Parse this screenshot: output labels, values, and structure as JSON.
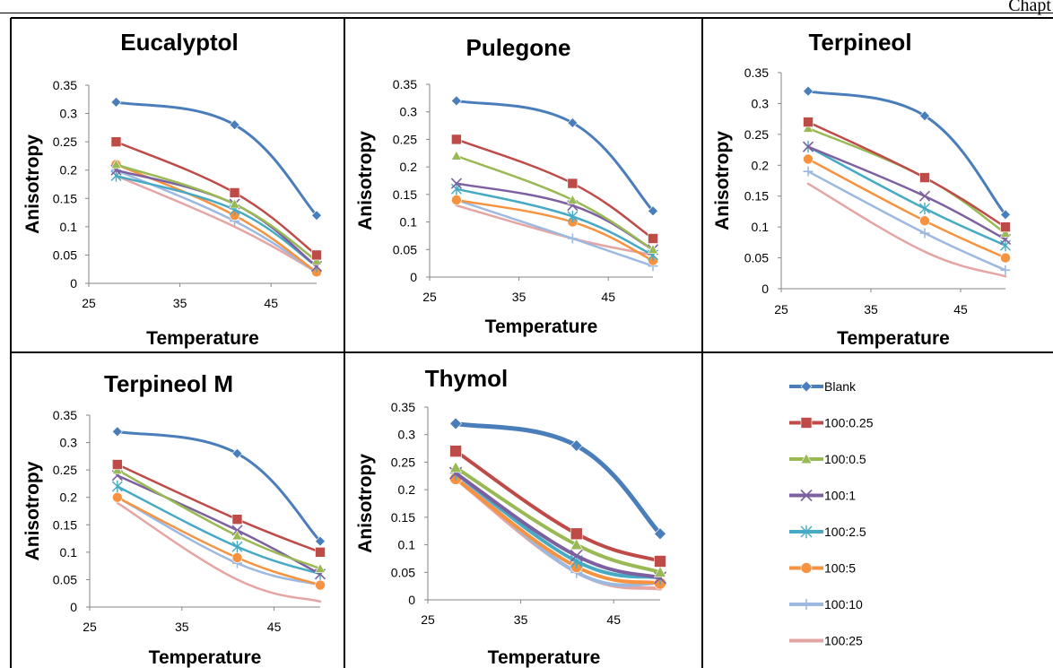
{
  "header": {
    "text": "Chapt"
  },
  "legend": {
    "entries": [
      "Blank",
      "100:0.25",
      "100:0.5",
      "100:1",
      "100:2.5",
      "100:5",
      "100:10",
      "100:25"
    ]
  },
  "series_styles": [
    {
      "name": "Blank",
      "color": "#4A7EBB",
      "marker": "diamond"
    },
    {
      "name": "100:0.25",
      "color": "#BE4B48",
      "marker": "square"
    },
    {
      "name": "100:0.5",
      "color": "#98B954",
      "marker": "triangle"
    },
    {
      "name": "100:1",
      "color": "#7D60A0",
      "marker": "x"
    },
    {
      "name": "100:2.5",
      "color": "#46AAC5",
      "marker": "star"
    },
    {
      "name": "100:5",
      "color": "#F69240",
      "marker": "circle"
    },
    {
      "name": "100:10",
      "color": "#9DB9E0",
      "marker": "plus"
    },
    {
      "name": "100:25",
      "color": "#E5A5A3",
      "marker": "none"
    }
  ],
  "chart_data": [
    {
      "type": "line",
      "title": "Eucalyptol",
      "xlabel": "Temperature",
      "ylabel": "Anisotropy",
      "xlim": [
        25,
        50
      ],
      "ylim": [
        0,
        0.35
      ],
      "xticks": [
        "25",
        "35",
        "45"
      ],
      "yticks": [
        "0",
        "0.05",
        "0.1",
        "0.15",
        "0.2",
        "0.25",
        "0.3",
        "0.35"
      ],
      "x": [
        28,
        41,
        50
      ],
      "series": [
        {
          "name": "Blank",
          "values": [
            0.32,
            0.28,
            0.12
          ]
        },
        {
          "name": "100:0.25",
          "values": [
            0.25,
            0.16,
            0.05
          ]
        },
        {
          "name": "100:0.5",
          "values": [
            0.21,
            0.14,
            0.04
          ]
        },
        {
          "name": "100:1",
          "values": [
            0.2,
            0.14,
            0.03
          ]
        },
        {
          "name": "100:2.5",
          "values": [
            0.19,
            0.13,
            0.03
          ]
        },
        {
          "name": "100:5",
          "values": [
            0.21,
            0.12,
            0.02
          ]
        },
        {
          "name": "100:10",
          "values": [
            0.2,
            0.11,
            0.02
          ]
        },
        {
          "name": "100:25",
          "values": [
            0.19,
            0.1,
            0.02
          ]
        }
      ]
    },
    {
      "type": "line",
      "title": "Pulegone",
      "xlabel": "Temperature",
      "ylabel": "Anisotropy",
      "xlim": [
        25,
        50
      ],
      "ylim": [
        0,
        0.35
      ],
      "xticks": [
        "25",
        "35",
        "45"
      ],
      "yticks": [
        "0",
        "0.05",
        "0.1",
        "0.15",
        "0.2",
        "0.25",
        "0.3",
        "0.35"
      ],
      "x": [
        28,
        41,
        50
      ],
      "series": [
        {
          "name": "Blank",
          "values": [
            0.32,
            0.28,
            0.12
          ]
        },
        {
          "name": "100:0.25",
          "values": [
            0.25,
            0.17,
            0.07
          ]
        },
        {
          "name": "100:0.5",
          "values": [
            0.22,
            0.14,
            0.05
          ]
        },
        {
          "name": "100:1",
          "values": [
            0.17,
            0.13,
            0.05
          ]
        },
        {
          "name": "100:2.5",
          "values": [
            0.16,
            0.11,
            0.04
          ]
        },
        {
          "name": "100:5",
          "values": [
            0.14,
            0.1,
            0.03
          ]
        },
        {
          "name": "100:10",
          "values": [
            0.14,
            0.07,
            0.02
          ]
        },
        {
          "name": "100:25",
          "values": [
            0.13,
            0.07,
            0.04
          ]
        }
      ]
    },
    {
      "type": "line",
      "title": "Terpineol",
      "xlabel": "Temperature",
      "ylabel": "Anisotropy",
      "xlim": [
        25,
        50
      ],
      "ylim": [
        0,
        0.35
      ],
      "xticks": [
        "25",
        "35",
        "45"
      ],
      "yticks": [
        "0",
        "0.05",
        "0.1",
        "0.15",
        "0.2",
        "0.25",
        "0.3",
        "0.35"
      ],
      "x": [
        28,
        41,
        50
      ],
      "series": [
        {
          "name": "Blank",
          "values": [
            0.32,
            0.28,
            0.12
          ]
        },
        {
          "name": "100:0.25",
          "values": [
            0.27,
            0.18,
            0.1
          ]
        },
        {
          "name": "100:0.5",
          "values": [
            0.26,
            0.18,
            0.09
          ]
        },
        {
          "name": "100:1",
          "values": [
            0.23,
            0.15,
            0.08
          ]
        },
        {
          "name": "100:2.5",
          "values": [
            0.23,
            0.13,
            0.07
          ]
        },
        {
          "name": "100:5",
          "values": [
            0.21,
            0.11,
            0.05
          ]
        },
        {
          "name": "100:10",
          "values": [
            0.19,
            0.09,
            0.03
          ]
        },
        {
          "name": "100:25",
          "values": [
            0.17,
            0.06,
            0.02
          ]
        }
      ]
    },
    {
      "type": "line",
      "title": "Terpineol M",
      "xlabel": "Temperature",
      "ylabel": "Anisotropy",
      "xlim": [
        25,
        50
      ],
      "ylim": [
        0,
        0.35
      ],
      "xticks": [
        "25",
        "35",
        "45"
      ],
      "yticks": [
        "0",
        "0.05",
        "0.1",
        "0.15",
        "0.2",
        "0.25",
        "0.3",
        "0.35"
      ],
      "x": [
        28,
        41,
        50
      ],
      "series": [
        {
          "name": "Blank",
          "values": [
            0.32,
            0.28,
            0.12
          ]
        },
        {
          "name": "100:0.25",
          "values": [
            0.26,
            0.16,
            0.1
          ]
        },
        {
          "name": "100:0.5",
          "values": [
            0.25,
            0.13,
            0.07
          ]
        },
        {
          "name": "100:1",
          "values": [
            0.24,
            0.14,
            0.06
          ]
        },
        {
          "name": "100:2.5",
          "values": [
            0.22,
            0.11,
            0.06
          ]
        },
        {
          "name": "100:5",
          "values": [
            0.2,
            0.09,
            0.04
          ]
        },
        {
          "name": "100:10",
          "values": [
            0.2,
            0.08,
            0.04
          ]
        },
        {
          "name": "100:25",
          "values": [
            0.19,
            0.05,
            0.01
          ]
        }
      ]
    },
    {
      "type": "line",
      "title": "Thymol",
      "xlabel": "Temperature",
      "ylabel": "Anisotropy",
      "xlim": [
        25,
        50
      ],
      "ylim": [
        0,
        0.35
      ],
      "xticks": [
        "25",
        "35",
        "45"
      ],
      "yticks": [
        "0",
        "0.05",
        "0.1",
        "0.15",
        "0.2",
        "0.25",
        "0.3",
        "0.35"
      ],
      "x": [
        28,
        41,
        50
      ],
      "series": [
        {
          "name": "Blank",
          "values": [
            0.32,
            0.28,
            0.12
          ]
        },
        {
          "name": "100:0.25",
          "values": [
            0.27,
            0.12,
            0.07
          ]
        },
        {
          "name": "100:0.5",
          "values": [
            0.24,
            0.1,
            0.05
          ]
        },
        {
          "name": "100:1",
          "values": [
            0.23,
            0.08,
            0.04
          ]
        },
        {
          "name": "100:2.5",
          "values": [
            0.23,
            0.07,
            0.04
          ]
        },
        {
          "name": "100:5",
          "values": [
            0.22,
            0.06,
            0.03
          ]
        },
        {
          "name": "100:10",
          "values": [
            0.23,
            0.05,
            0.03
          ]
        },
        {
          "name": "100:25",
          "values": [
            0.22,
            0.05,
            0.02
          ]
        }
      ]
    }
  ]
}
